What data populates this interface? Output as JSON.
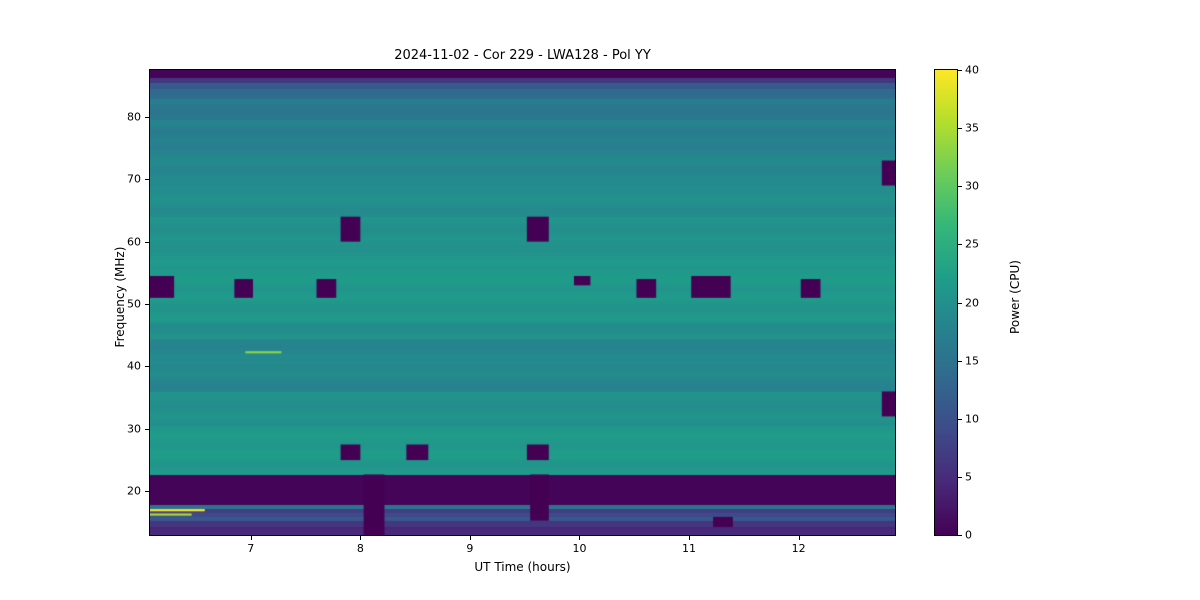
{
  "chart_data": {
    "type": "heatmap",
    "title": "2024-11-02 - Cor 229 - LWA128 - Pol YY",
    "xlabel": "UT Time (hours)",
    "ylabel": "Frequency (MHz)",
    "x_range": [
      6.08,
      12.88
    ],
    "y_range": [
      13.0,
      87.5
    ],
    "x_ticks": [
      7,
      8,
      9,
      10,
      11,
      12
    ],
    "y_ticks": [
      20,
      30,
      40,
      50,
      60,
      70,
      80
    ],
    "colormap": "viridis",
    "colorbar": {
      "label": "Power (CPU)",
      "min": 0,
      "max": 40,
      "ticks": [
        0,
        5,
        10,
        15,
        20,
        25,
        30,
        35,
        40
      ]
    },
    "background_bands": [
      {
        "f0": 86.3,
        "f1": 87.5,
        "power": 0.5
      },
      {
        "f0": 85.5,
        "f1": 86.3,
        "power": 6
      },
      {
        "f0": 84.6,
        "f1": 85.5,
        "power": 11
      },
      {
        "f0": 83.0,
        "f1": 84.6,
        "power": 14
      },
      {
        "f0": 79.5,
        "f1": 83.0,
        "power": 16
      },
      {
        "f0": 75.0,
        "f1": 79.5,
        "power": 17.5
      },
      {
        "f0": 69.0,
        "f1": 75.0,
        "power": 18.5
      },
      {
        "f0": 64.0,
        "f1": 69.0,
        "power": 19.5
      },
      {
        "f0": 57.0,
        "f1": 64.0,
        "power": 20.5
      },
      {
        "f0": 47.0,
        "f1": 57.0,
        "power": 21.2
      },
      {
        "f0": 44.5,
        "f1": 47.0,
        "power": 20.0
      },
      {
        "f0": 41.0,
        "f1": 44.5,
        "power": 18.3
      },
      {
        "f0": 38.5,
        "f1": 41.0,
        "power": 19.0
      },
      {
        "f0": 36.0,
        "f1": 38.5,
        "power": 18.3
      },
      {
        "f0": 30.5,
        "f1": 36.0,
        "power": 20.3
      },
      {
        "f0": 22.7,
        "f1": 30.5,
        "power": 21.2
      },
      {
        "f0": 17.95,
        "f1": 22.7,
        "power": 0.5
      },
      {
        "f0": 17.25,
        "f1": 17.95,
        "power": 16
      },
      {
        "f0": 16.6,
        "f1": 17.25,
        "power": 7
      },
      {
        "f0": 15.95,
        "f1": 16.6,
        "power": 8.5
      },
      {
        "f0": 15.25,
        "f1": 15.95,
        "power": 11
      },
      {
        "f0": 14.4,
        "f1": 15.25,
        "power": 6.5
      },
      {
        "f0": 13.0,
        "f1": 14.4,
        "power": 4
      }
    ],
    "flagged_regions": [
      {
        "t0": 6.08,
        "t1": 6.3,
        "f0": 51.0,
        "f1": 54.5
      },
      {
        "t0": 6.85,
        "t1": 7.02,
        "f0": 51.0,
        "f1": 54.0
      },
      {
        "t0": 7.6,
        "t1": 7.78,
        "f0": 51.0,
        "f1": 54.0
      },
      {
        "t0": 7.82,
        "t1": 8.0,
        "f0": 60.0,
        "f1": 64.0
      },
      {
        "t0": 7.82,
        "t1": 8.0,
        "f0": 25.0,
        "f1": 27.5
      },
      {
        "t0": 8.03,
        "t1": 8.22,
        "f0": 13.0,
        "f1": 22.7
      },
      {
        "t0": 8.42,
        "t1": 8.62,
        "f0": 25.0,
        "f1": 27.5
      },
      {
        "t0": 9.52,
        "t1": 9.72,
        "f0": 60.0,
        "f1": 64.0
      },
      {
        "t0": 9.52,
        "t1": 9.72,
        "f0": 25.0,
        "f1": 27.5
      },
      {
        "t0": 9.55,
        "t1": 9.72,
        "f0": 15.3,
        "f1": 22.7
      },
      {
        "t0": 9.95,
        "t1": 10.1,
        "f0": 53.0,
        "f1": 54.5
      },
      {
        "t0": 10.52,
        "t1": 10.7,
        "f0": 51.0,
        "f1": 54.0
      },
      {
        "t0": 11.02,
        "t1": 11.38,
        "f0": 51.0,
        "f1": 54.5
      },
      {
        "t0": 11.22,
        "t1": 11.4,
        "f0": 14.3,
        "f1": 15.9
      },
      {
        "t0": 12.02,
        "t1": 12.2,
        "f0": 51.0,
        "f1": 54.0
      },
      {
        "t0": 12.76,
        "t1": 12.88,
        "f0": 69.0,
        "f1": 73.0
      },
      {
        "t0": 12.76,
        "t1": 12.88,
        "f0": 32.0,
        "f1": 36.0
      }
    ],
    "bright_features": [
      {
        "t0": 6.08,
        "t1": 6.58,
        "f0": 16.8,
        "f1": 17.15,
        "power": 40
      },
      {
        "t0": 6.08,
        "t1": 6.46,
        "f0": 16.1,
        "f1": 16.45,
        "power": 35
      },
      {
        "t0": 6.95,
        "t1": 7.28,
        "f0": 42.1,
        "f1": 42.45,
        "power": 33
      }
    ],
    "colors": {
      "flagged": "#440154",
      "background": "#ffffff",
      "axis": "#000000"
    }
  }
}
